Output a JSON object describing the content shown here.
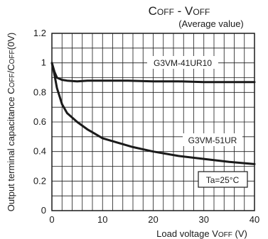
{
  "chart_data": {
    "type": "line",
    "title": {
      "c1": "C",
      "s1": "OFF",
      "mid": " - V",
      "s2": "OFF"
    },
    "subtitle": "(Average value)",
    "ylabel": {
      "pre": "Output terminal capacitance C",
      "s1": "OFF",
      "mid": "/C",
      "s2": "OFF",
      "post": "(0V)"
    },
    "xlabel": {
      "pre": "Load voltage V",
      "s1": "OFF",
      "post": " (V)"
    },
    "xlim": [
      0,
      40
    ],
    "ylim": [
      0,
      1.2
    ],
    "xticks": [
      0,
      10,
      20,
      30,
      40
    ],
    "yticks": [
      0,
      0.2,
      0.4,
      0.6,
      0.8,
      1,
      1.2
    ],
    "xtick_labels": [
      "0",
      "10",
      "20",
      "30",
      "40"
    ],
    "ytick_labels": [
      "0",
      "0.2",
      "0.4",
      "0.6",
      "0.8",
      "1",
      "1.2"
    ],
    "grid": true,
    "x_minor_step": 2,
    "y_minor_step": 0.1,
    "series": [
      {
        "name": "G3VM-41UR10",
        "x": [
          0,
          0.5,
          1,
          2,
          3,
          5,
          7,
          10,
          15,
          20,
          25,
          30,
          35,
          40
        ],
        "y": [
          1.0,
          0.94,
          0.9,
          0.885,
          0.88,
          0.875,
          0.88,
          0.88,
          0.88,
          0.875,
          0.875,
          0.87,
          0.87,
          0.87
        ]
      },
      {
        "name": "G3VM-51UR",
        "x": [
          0,
          0.5,
          1,
          2,
          3,
          4,
          5,
          7,
          10,
          13,
          16,
          20,
          25,
          30,
          35,
          40
        ],
        "y": [
          1.0,
          0.92,
          0.83,
          0.72,
          0.66,
          0.63,
          0.6,
          0.55,
          0.49,
          0.46,
          0.43,
          0.4,
          0.37,
          0.35,
          0.33,
          0.315
        ]
      }
    ],
    "annotation": "Ta=25°C"
  },
  "colors": {
    "line": "#1a1a1a",
    "grid": "#1a1a1a",
    "background": "#ffffff"
  }
}
